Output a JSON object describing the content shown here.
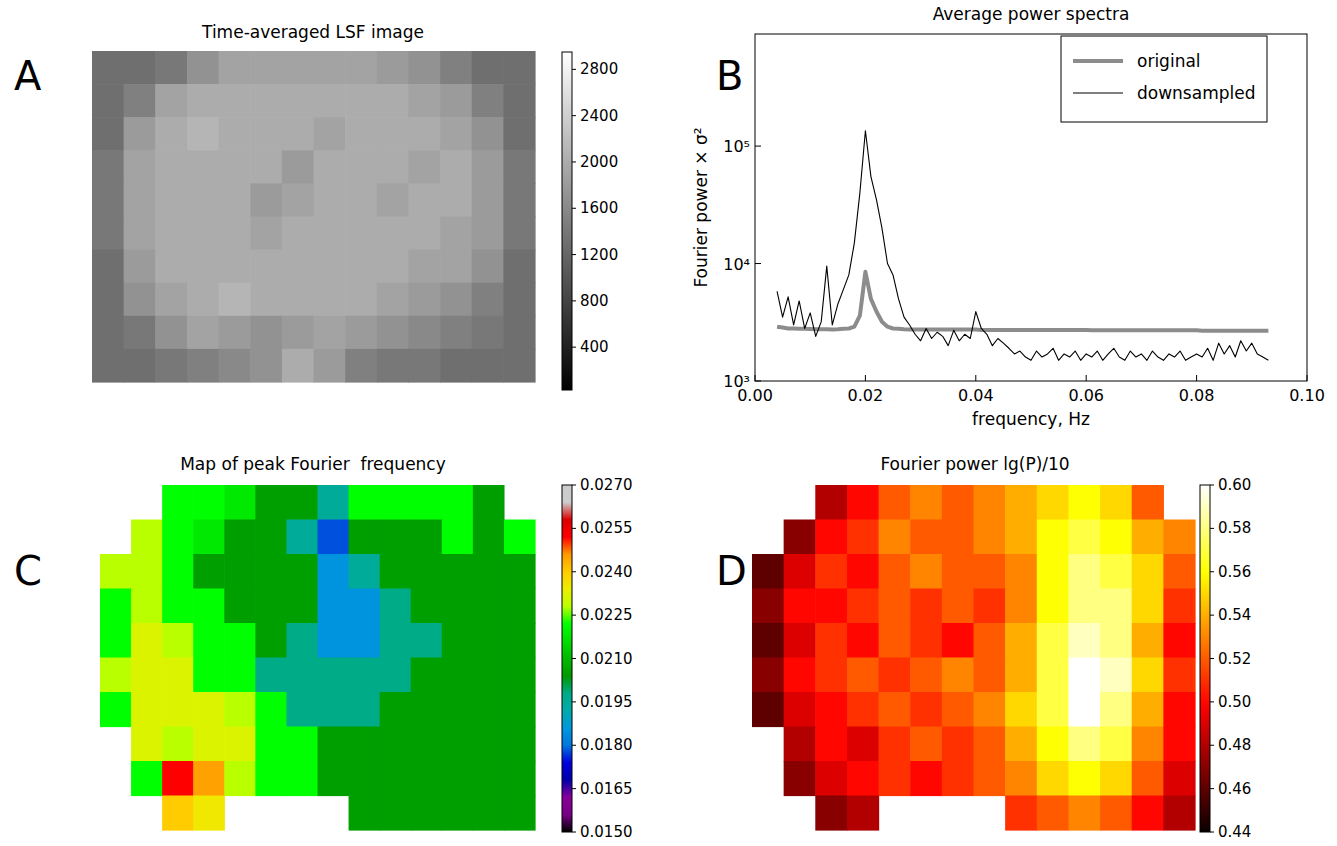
{
  "chart_data": [
    {
      "type": "heatmap",
      "panel_label": "A",
      "title": "Time-averaged LSF image",
      "color": "gray",
      "tick_labels": false,
      "colorbar_range": [
        30,
        2950
      ],
      "colorbar_ticks": [
        400,
        800,
        1200,
        1600,
        2000,
        2400,
        2800
      ],
      "z": [
        [
          1300,
          1300,
          1400,
          1700,
          1900,
          1900,
          1900,
          1900,
          1900,
          1800,
          1700,
          1500,
          1300,
          1300
        ],
        [
          1300,
          1500,
          1900,
          2000,
          2000,
          2000,
          2000,
          2000,
          2000,
          2000,
          1900,
          1800,
          1500,
          1300
        ],
        [
          1300,
          1800,
          2000,
          2100,
          2000,
          2000,
          2000,
          1900,
          2000,
          2000,
          2000,
          1900,
          1700,
          1300
        ],
        [
          1400,
          1900,
          2000,
          2000,
          2000,
          2000,
          1800,
          2000,
          2000,
          2000,
          1900,
          2000,
          1800,
          1400
        ],
        [
          1400,
          1900,
          2000,
          2000,
          2000,
          1800,
          1900,
          2000,
          2000,
          1900,
          2000,
          2000,
          1800,
          1400
        ],
        [
          1400,
          1900,
          2000,
          2000,
          2000,
          1900,
          2000,
          2000,
          2000,
          2000,
          2000,
          1900,
          1800,
          1400
        ],
        [
          1300,
          1800,
          2000,
          2000,
          2000,
          2000,
          2000,
          2000,
          2000,
          2000,
          1900,
          1900,
          1700,
          1300
        ],
        [
          1300,
          1700,
          1900,
          2000,
          2100,
          2000,
          2000,
          2000,
          2000,
          1900,
          1800,
          1700,
          1500,
          1300
        ],
        [
          1300,
          1400,
          1700,
          1900,
          1800,
          1700,
          1800,
          1900,
          1800,
          1700,
          1600,
          1500,
          1400,
          1300
        ],
        [
          1300,
          1300,
          1400,
          1500,
          1600,
          1700,
          2000,
          1800,
          1500,
          1400,
          1400,
          1300,
          1300,
          1300
        ]
      ]
    },
    {
      "type": "line",
      "panel_label": "B",
      "title": "Average power spectra",
      "x_label": "frequency, Hz",
      "y_label": "Fourier power × σ²",
      "log": "y",
      "legend": "upper right",
      "xlim": [
        0,
        0.1
      ],
      "xticks": [
        {
          "value": 0,
          "label": "0.00"
        },
        0.02,
        0.04,
        0.06,
        0.08,
        {
          "value": 0.1,
          "label": "0.10"
        }
      ],
      "ylim": [
        1000,
        900000
      ],
      "yticks": [
        {
          "value": 1000,
          "label": "10³"
        },
        {
          "value": 10000,
          "label": "10⁴"
        },
        {
          "value": 100000,
          "label": "10⁵"
        }
      ],
      "x": [
        0.004,
        0.005,
        0.006,
        0.007,
        0.008,
        0.009,
        0.01,
        0.011,
        0.012,
        0.013,
        0.014,
        0.015,
        0.016,
        0.017,
        0.018,
        0.019,
        0.02,
        0.021,
        0.022,
        0.023,
        0.024,
        0.025,
        0.026,
        0.027,
        0.028,
        0.029,
        0.03,
        0.031,
        0.032,
        0.033,
        0.034,
        0.035,
        0.036,
        0.037,
        0.038,
        0.039,
        0.04,
        0.041,
        0.042,
        0.043,
        0.044,
        0.045,
        0.046,
        0.047,
        0.048,
        0.049,
        0.05,
        0.051,
        0.052,
        0.053,
        0.054,
        0.055,
        0.056,
        0.057,
        0.058,
        0.059,
        0.06,
        0.061,
        0.062,
        0.063,
        0.064,
        0.065,
        0.066,
        0.067,
        0.068,
        0.069,
        0.07,
        0.071,
        0.072,
        0.073,
        0.074,
        0.075,
        0.076,
        0.077,
        0.078,
        0.079,
        0.08,
        0.081,
        0.082,
        0.083,
        0.084,
        0.085,
        0.086,
        0.087,
        0.088,
        0.089,
        0.09,
        0.091,
        0.092,
        0.093
      ],
      "series": [
        {
          "name": "original",
          "color": "#8c8c8c",
          "values": [
            2900,
            2850,
            2800,
            2800,
            2780,
            2780,
            2770,
            2760,
            2760,
            2760,
            2750,
            2760,
            2780,
            2800,
            2900,
            3600,
            8500,
            5000,
            3900,
            3200,
            2900,
            2800,
            2780,
            2760,
            2750,
            2740,
            2740,
            2740,
            2740,
            2740,
            2740,
            2740,
            2740,
            2740,
            2740,
            2740,
            2740,
            2720,
            2720,
            2720,
            2720,
            2720,
            2720,
            2720,
            2720,
            2720,
            2720,
            2720,
            2720,
            2720,
            2720,
            2720,
            2720,
            2720,
            2720,
            2720,
            2720,
            2700,
            2700,
            2700,
            2700,
            2700,
            2700,
            2700,
            2700,
            2700,
            2700,
            2700,
            2700,
            2700,
            2700,
            2700,
            2700,
            2700,
            2700,
            2700,
            2700,
            2680,
            2680,
            2680,
            2680,
            2680,
            2680,
            2680,
            2680,
            2680,
            2680,
            2680,
            2680,
            2680
          ]
        },
        {
          "name": "downsampled",
          "color": "#000000",
          "values": [
            5800,
            3500,
            5200,
            3000,
            4800,
            2800,
            3800,
            2400,
            3200,
            9500,
            3000,
            4500,
            6000,
            8000,
            15000,
            40000,
            135000,
            55000,
            35000,
            20000,
            10000,
            8000,
            5000,
            3500,
            3000,
            2500,
            2200,
            2800,
            2300,
            2600,
            2400,
            2000,
            2700,
            2200,
            2500,
            2300,
            3900,
            2800,
            2500,
            2000,
            2300,
            2100,
            1900,
            1700,
            1800,
            1600,
            1500,
            1800,
            1600,
            1700,
            1900,
            1500,
            1700,
            1600,
            1800,
            1500,
            1700,
            1600,
            1800,
            1500,
            1700,
            1900,
            1600,
            1500,
            1800,
            1600,
            1700,
            1500,
            1800,
            1600,
            1500,
            1700,
            1600,
            1800,
            1500,
            1600,
            1700,
            1600,
            1900,
            1500,
            2100,
            1700,
            2000,
            1600,
            2200,
            1800,
            2100,
            1700,
            1600,
            1500
          ]
        }
      ]
    },
    {
      "type": "heatmap",
      "panel_label": "C",
      "title": "Map of peak Fourier  frequency",
      "color": "nipy_spectral",
      "tick_labels": false,
      "colorbar_range": [
        0.015,
        0.027
      ],
      "colorbar_ticks": [
        {
          "value": 0.015,
          "label": "0.0150"
        },
        {
          "value": 0.0165,
          "label": "0.0165"
        },
        {
          "value": 0.018,
          "label": "0.0180"
        },
        {
          "value": 0.0195,
          "label": "0.0195"
        },
        {
          "value": 0.021,
          "label": "0.0210"
        },
        {
          "value": 0.0225,
          "label": "0.0225"
        },
        {
          "value": 0.024,
          "label": "0.0240"
        },
        {
          "value": 0.0255,
          "label": "0.0255"
        },
        {
          "value": 0.027,
          "label": "0.0270"
        }
      ],
      "z": [
        [
          null,
          null,
          0.0222,
          0.0222,
          0.0218,
          0.0205,
          0.0205,
          0.0195,
          0.0222,
          0.0222,
          0.0222,
          0.0222,
          0.0205,
          null
        ],
        [
          null,
          0.0228,
          0.0222,
          0.0218,
          0.0205,
          0.0205,
          0.0195,
          0.0178,
          0.0205,
          0.0205,
          0.0205,
          0.0222,
          0.0205,
          0.0222
        ],
        [
          0.0228,
          0.0228,
          0.0222,
          0.0205,
          0.0205,
          0.0205,
          0.0205,
          0.0185,
          0.0195,
          0.0205,
          0.0205,
          0.0205,
          0.0205,
          0.0205
        ],
        [
          0.0222,
          0.0228,
          0.0222,
          0.0222,
          0.0205,
          0.0205,
          0.0205,
          0.0185,
          0.0185,
          0.0198,
          0.0205,
          0.0205,
          0.0205,
          0.0205
        ],
        [
          0.0222,
          0.0232,
          0.0228,
          0.0222,
          0.0222,
          0.0205,
          0.0198,
          0.0185,
          0.0185,
          0.0198,
          0.0198,
          0.0205,
          0.0205,
          0.0205
        ],
        [
          0.0228,
          0.0232,
          0.0232,
          0.0222,
          0.0222,
          0.0198,
          0.0198,
          0.0198,
          0.0198,
          0.0198,
          0.0205,
          0.0205,
          0.0205,
          0.0205
        ],
        [
          0.0222,
          0.0232,
          0.0232,
          0.0232,
          0.0228,
          0.0222,
          0.0198,
          0.0198,
          0.0198,
          0.0205,
          0.0205,
          0.0205,
          0.0205,
          0.0205
        ],
        [
          null,
          0.0232,
          0.0228,
          0.0232,
          0.0232,
          0.0222,
          0.0222,
          0.0205,
          0.0205,
          0.0205,
          0.0205,
          0.0205,
          0.0205,
          0.0205
        ],
        [
          null,
          0.0222,
          0.0252,
          0.0245,
          0.0228,
          0.0222,
          0.0222,
          0.0205,
          0.0205,
          0.0205,
          0.0205,
          0.0205,
          0.0205,
          0.0205
        ],
        [
          null,
          null,
          0.024,
          0.0235,
          null,
          null,
          null,
          null,
          0.0205,
          0.0205,
          0.0205,
          0.0205,
          0.0205,
          0.0205
        ]
      ]
    },
    {
      "type": "heatmap",
      "panel_label": "D",
      "title": "Fourier power lg(P)/10",
      "color": "hot",
      "tick_labels": false,
      "colorbar_range": [
        0.44,
        0.6
      ],
      "colorbar_ticks": [
        0.44,
        0.46,
        0.48,
        {
          "value": 0.5,
          "label": "0.50"
        },
        0.52,
        0.54,
        0.56,
        0.58,
        {
          "value": 0.6,
          "label": "0.60"
        }
      ],
      "z": [
        [
          null,
          null,
          0.48,
          0.5,
          0.52,
          0.53,
          0.52,
          0.53,
          0.54,
          0.55,
          0.56,
          0.55,
          0.52,
          null
        ],
        [
          null,
          0.47,
          0.5,
          0.51,
          0.53,
          0.52,
          0.52,
          0.53,
          0.54,
          0.56,
          0.57,
          0.56,
          0.54,
          0.53
        ],
        [
          0.46,
          0.49,
          0.51,
          0.5,
          0.52,
          0.53,
          0.52,
          0.52,
          0.53,
          0.56,
          0.58,
          0.57,
          0.55,
          0.52
        ],
        [
          0.47,
          0.5,
          0.5,
          0.51,
          0.52,
          0.51,
          0.52,
          0.51,
          0.53,
          0.56,
          0.58,
          0.58,
          0.55,
          0.51
        ],
        [
          0.46,
          0.49,
          0.51,
          0.5,
          0.52,
          0.51,
          0.5,
          0.52,
          0.54,
          0.57,
          0.59,
          0.58,
          0.54,
          0.5
        ],
        [
          0.47,
          0.5,
          0.51,
          0.52,
          0.51,
          0.52,
          0.53,
          0.52,
          0.54,
          0.57,
          0.6,
          0.59,
          0.55,
          0.51
        ],
        [
          0.46,
          0.49,
          0.5,
          0.51,
          0.52,
          0.51,
          0.52,
          0.53,
          0.55,
          0.57,
          0.6,
          0.58,
          0.54,
          0.5
        ],
        [
          null,
          0.48,
          0.5,
          0.49,
          0.51,
          0.52,
          0.51,
          0.52,
          0.54,
          0.56,
          0.58,
          0.57,
          0.53,
          0.5
        ],
        [
          null,
          0.47,
          0.49,
          0.5,
          0.51,
          0.5,
          0.51,
          0.52,
          0.53,
          0.55,
          0.56,
          0.55,
          0.52,
          0.49
        ],
        [
          null,
          null,
          0.47,
          0.48,
          null,
          null,
          null,
          null,
          0.51,
          0.52,
          0.53,
          0.52,
          0.5,
          0.48
        ]
      ]
    }
  ]
}
